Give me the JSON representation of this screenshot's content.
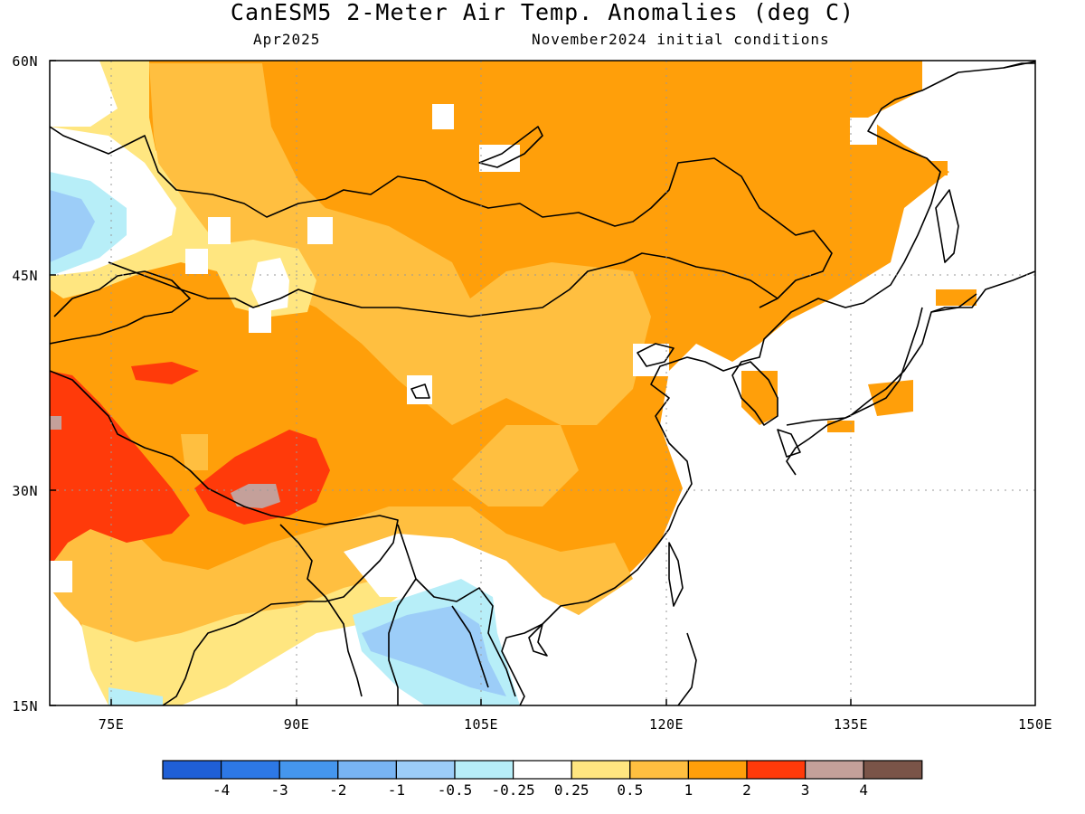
{
  "header": {
    "title": "CanESM5 2-Meter Air Temp. Anomalies (deg C)",
    "period": "Apr2025",
    "conditions": "November2024 initial conditions"
  },
  "map": {
    "lon_range": [
      70,
      150
    ],
    "lat_range": [
      15,
      60
    ],
    "lat_ticks": [
      {
        "value": 60,
        "label": "60N"
      },
      {
        "value": 45,
        "label": "45N"
      },
      {
        "value": 30,
        "label": "30N"
      },
      {
        "value": 15,
        "label": "15N"
      }
    ],
    "lon_ticks": [
      {
        "value": 75,
        "label": "75E"
      },
      {
        "value": 90,
        "label": "90E"
      },
      {
        "value": 105,
        "label": "105E"
      },
      {
        "value": 120,
        "label": "120E"
      },
      {
        "value": 135,
        "label": "135E"
      },
      {
        "value": 150,
        "label": "150E"
      }
    ],
    "gridlines": "dotted"
  },
  "colorbar": {
    "labels": [
      "-4",
      "-3",
      "-2",
      "-1",
      "-0.5",
      "-0.25",
      "0.25",
      "0.5",
      "1",
      "2",
      "3",
      "4"
    ],
    "colors": [
      "#1f5fd6",
      "#2d78e6",
      "#4596ee",
      "#78b4f3",
      "#9ccdf8",
      "#b7eef8",
      "#ffffff",
      "#ffe680",
      "#ffbf40",
      "#ff9f0a",
      "#ff3a0a",
      "#c4a09a",
      "#7a5448"
    ]
  }
}
